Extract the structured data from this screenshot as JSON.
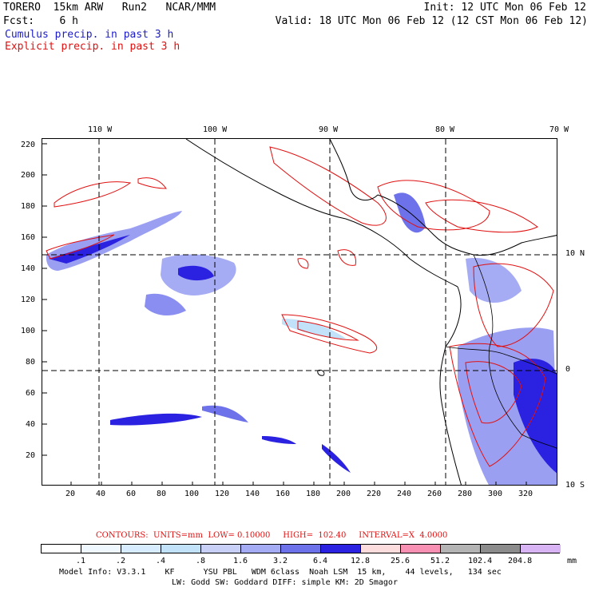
{
  "header": {
    "line1_left": "TORERO  15km ARW   Run2   NCAR/MMM",
    "line1_right": "Init: 12 UTC Mon 06 Feb 12",
    "line2_left": "Fcst:    6 h",
    "line2_right": "Valid: 18 UTC Mon 06 Feb 12 (12 CST Mon 06 Feb 12)",
    "line3": "Cumulus precip. in past 3 h",
    "line4": "Explicit precip. in past 3 h"
  },
  "colors": {
    "cumulus": "#1c1cc8",
    "explicit": "#e01010",
    "ocean": "#ffffff",
    "coast": "#000000"
  },
  "map": {
    "top_ticks": [
      "110 W",
      "100 W",
      "90 W",
      "80 W",
      "70 W"
    ],
    "left_ticks": [
      "220",
      "200",
      "180",
      "160",
      "140",
      "120",
      "100",
      "80",
      "60",
      "40",
      "20"
    ],
    "bottom_ticks": [
      "20",
      "40",
      "60",
      "80",
      "100",
      "120",
      "140",
      "160",
      "180",
      "200",
      "220",
      "240",
      "260",
      "280",
      "300",
      "320"
    ],
    "right_ticks": [
      "10 N",
      "0",
      "10 S"
    ]
  },
  "footer": {
    "contours": "CONTOURS:  UNITS=mm  LOW= 0.10000     HIGH=  102.40     INTERVAL=X  4.0000",
    "colorbar_labels": [
      ".1",
      ".2",
      ".4",
      ".8",
      "1.6",
      "3.2",
      "6.4",
      "12.8",
      "25.6",
      "51.2",
      "102.4",
      "204.8"
    ],
    "colorbar_units": "mm",
    "colorbar_colors": [
      "#ffffff",
      "#f0f8ff",
      "#d8ecff",
      "#c2e2fa",
      "#c8d0f8",
      "#a6acf4",
      "#6e72ea",
      "#2a22e0",
      "#fcdcdc",
      "#f890b4",
      "#b4b4b4",
      "#8c8c8c",
      "#d8b4f4"
    ],
    "model_info_1": "Model Info: V3.3.1    KF      YSU PBL   WDM 6class  Noah LSM  15 km,    44 levels,   134 sec",
    "model_info_2": "LW: Godd SW: Goddard DIFF: simple KM: 2D Smagor"
  }
}
